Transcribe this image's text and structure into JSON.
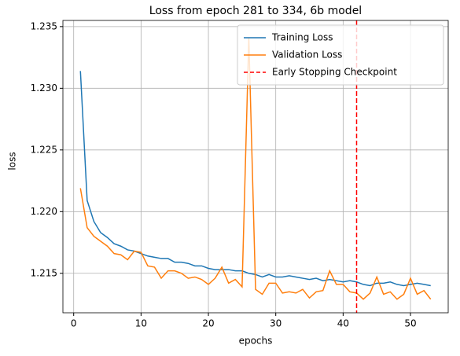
{
  "chart_data": {
    "type": "line",
    "title": "Loss from epoch 281 to 334, 6b model",
    "xlabel": "epochs",
    "ylabel": "loss",
    "x": [
      1,
      2,
      3,
      4,
      5,
      6,
      7,
      8,
      9,
      10,
      11,
      12,
      13,
      14,
      15,
      16,
      17,
      18,
      19,
      20,
      21,
      22,
      23,
      24,
      25,
      26,
      27,
      28,
      29,
      30,
      31,
      32,
      33,
      34,
      35,
      36,
      37,
      38,
      39,
      40,
      41,
      42,
      43,
      44,
      45,
      46,
      47,
      48,
      49,
      50,
      51,
      52,
      53
    ],
    "series": [
      {
        "name": "Training Loss",
        "color": "#1f77b4",
        "values": [
          1.2314,
          1.2209,
          1.2192,
          1.2183,
          1.2179,
          1.2174,
          1.2172,
          1.2169,
          1.2168,
          1.2166,
          1.2164,
          1.2163,
          1.2162,
          1.2162,
          1.2159,
          1.2159,
          1.2158,
          1.2156,
          1.2156,
          1.2154,
          1.2153,
          1.2153,
          1.2153,
          1.2152,
          1.2152,
          1.215,
          1.2149,
          1.2147,
          1.2149,
          1.2147,
          1.2147,
          1.2148,
          1.2147,
          1.2146,
          1.2145,
          1.2146,
          1.2144,
          1.2145,
          1.2144,
          1.2143,
          1.2144,
          1.2143,
          1.2141,
          1.214,
          1.2142,
          1.2142,
          1.2143,
          1.2141,
          1.214,
          1.2141,
          1.2142,
          1.2141,
          1.214
        ]
      },
      {
        "name": "Validation Loss",
        "color": "#ff7f0e",
        "values": [
          1.2219,
          1.2187,
          1.218,
          1.2176,
          1.2172,
          1.2166,
          1.2165,
          1.2161,
          1.2168,
          1.2167,
          1.2156,
          1.2155,
          1.2146,
          1.2152,
          1.2152,
          1.215,
          1.2146,
          1.2147,
          1.2145,
          1.2141,
          1.2146,
          1.2155,
          1.2142,
          1.2145,
          1.2139,
          1.2341,
          1.2137,
          1.2133,
          1.2142,
          1.2142,
          1.2134,
          1.2135,
          1.2134,
          1.2137,
          1.213,
          1.2135,
          1.2136,
          1.2152,
          1.2141,
          1.2141,
          1.2135,
          1.2134,
          1.2129,
          1.2134,
          1.2147,
          1.2133,
          1.2135,
          1.2129,
          1.2133,
          1.2146,
          1.2133,
          1.2136,
          1.2129
        ]
      }
    ],
    "vline": {
      "name": "Early Stopping Checkpoint",
      "x": 42,
      "color": "#ff0000"
    },
    "xlim": [
      -1.6,
      55.6
    ],
    "xticks": [
      0,
      10,
      20,
      30,
      40,
      50
    ],
    "ylim": [
      1.2118,
      1.2355
    ],
    "yticks": [
      1.215,
      {
        "value": 1.22,
        "label": "1.220"
      },
      1.225,
      {
        "value": 1.23,
        "label": "1.230"
      },
      1.235
    ],
    "grid": true,
    "legend": "upper right"
  }
}
